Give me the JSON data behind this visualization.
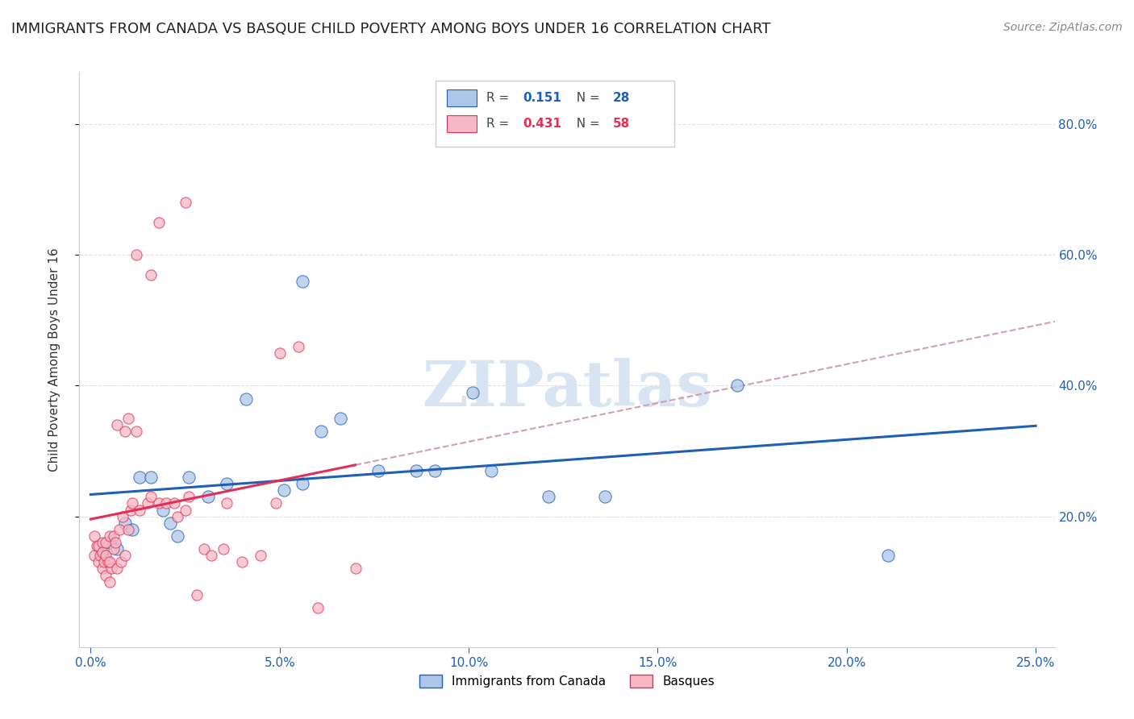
{
  "title": "IMMIGRANTS FROM CANADA VS BASQUE CHILD POVERTY AMONG BOYS UNDER 16 CORRELATION CHART",
  "source": "Source: ZipAtlas.com",
  "ylabel": "Child Poverty Among Boys Under 16",
  "x_tick_labels": [
    "0.0%",
    "5.0%",
    "10.0%",
    "15.0%",
    "20.0%",
    "25.0%"
  ],
  "x_tick_vals": [
    0.0,
    5.0,
    10.0,
    15.0,
    20.0,
    25.0
  ],
  "y_tick_labels_right": [
    "20.0%",
    "40.0%",
    "60.0%",
    "80.0%"
  ],
  "y_tick_vals": [
    20.0,
    40.0,
    60.0,
    80.0
  ],
  "xlim": [
    -0.3,
    25.5
  ],
  "ylim": [
    0.0,
    88.0
  ],
  "legend_blue_label": "Immigrants from Canada",
  "legend_pink_label": "Basques",
  "legend_blue_R_val": "0.151",
  "legend_blue_N_val": "28",
  "legend_pink_R_val": "0.431",
  "legend_pink_N_val": "58",
  "blue_color": "#aec6e8",
  "pink_color": "#f5b8c4",
  "blue_line_color": "#1f5fb5",
  "pink_line_color": "#e03055",
  "dashed_line_color": "#d0a0b0",
  "watermark": "ZIPatlas",
  "watermark_color": "#d8e4f2",
  "title_fontsize": 13,
  "source_fontsize": 10,
  "axis_label_fontsize": 11,
  "tick_fontsize": 11,
  "blue_scatter": [
    [
      0.3,
      14.0
    ],
    [
      0.5,
      16.0
    ],
    [
      0.7,
      15.0
    ],
    [
      0.9,
      19.0
    ],
    [
      1.1,
      18.0
    ],
    [
      1.3,
      26.0
    ],
    [
      1.6,
      26.0
    ],
    [
      1.9,
      21.0
    ],
    [
      2.1,
      19.0
    ],
    [
      2.3,
      17.0
    ],
    [
      2.6,
      26.0
    ],
    [
      3.1,
      23.0
    ],
    [
      3.6,
      25.0
    ],
    [
      4.1,
      38.0
    ],
    [
      5.1,
      24.0
    ],
    [
      5.6,
      25.0
    ],
    [
      6.1,
      33.0
    ],
    [
      6.6,
      35.0
    ],
    [
      7.6,
      27.0
    ],
    [
      8.6,
      27.0
    ],
    [
      9.1,
      27.0
    ],
    [
      10.1,
      39.0
    ],
    [
      10.6,
      27.0
    ],
    [
      12.1,
      23.0
    ],
    [
      13.6,
      23.0
    ],
    [
      17.1,
      40.0
    ],
    [
      21.1,
      14.0
    ],
    [
      5.6,
      56.0
    ]
  ],
  "pink_scatter": [
    [
      0.1,
      14.0
    ],
    [
      0.15,
      15.5
    ],
    [
      0.1,
      17.0
    ],
    [
      0.2,
      13.0
    ],
    [
      0.25,
      14.0
    ],
    [
      0.2,
      15.5
    ],
    [
      0.3,
      16.0
    ],
    [
      0.3,
      12.0
    ],
    [
      0.35,
      13.0
    ],
    [
      0.3,
      14.5
    ],
    [
      0.4,
      16.0
    ],
    [
      0.4,
      11.0
    ],
    [
      0.45,
      13.0
    ],
    [
      0.4,
      14.0
    ],
    [
      0.5,
      17.0
    ],
    [
      0.5,
      10.0
    ],
    [
      0.55,
      12.0
    ],
    [
      0.5,
      13.0
    ],
    [
      0.6,
      17.0
    ],
    [
      0.6,
      15.0
    ],
    [
      0.65,
      16.0
    ],
    [
      0.7,
      12.0
    ],
    [
      0.75,
      18.0
    ],
    [
      0.8,
      13.0
    ],
    [
      0.85,
      20.0
    ],
    [
      0.9,
      14.0
    ],
    [
      1.0,
      18.0
    ],
    [
      1.05,
      21.0
    ],
    [
      1.1,
      22.0
    ],
    [
      1.2,
      33.0
    ],
    [
      1.3,
      21.0
    ],
    [
      1.5,
      22.0
    ],
    [
      1.6,
      23.0
    ],
    [
      1.8,
      22.0
    ],
    [
      2.0,
      22.0
    ],
    [
      2.2,
      22.0
    ],
    [
      2.3,
      20.0
    ],
    [
      2.5,
      21.0
    ],
    [
      2.6,
      23.0
    ],
    [
      2.8,
      8.0
    ],
    [
      3.0,
      15.0
    ],
    [
      3.5,
      15.0
    ],
    [
      3.6,
      22.0
    ],
    [
      4.0,
      13.0
    ],
    [
      4.5,
      14.0
    ],
    [
      4.9,
      22.0
    ],
    [
      5.0,
      45.0
    ],
    [
      5.5,
      46.0
    ],
    [
      6.0,
      6.0
    ],
    [
      7.0,
      12.0
    ],
    [
      1.8,
      65.0
    ],
    [
      2.5,
      68.0
    ],
    [
      1.2,
      60.0
    ],
    [
      1.6,
      57.0
    ],
    [
      0.7,
      34.0
    ],
    [
      1.0,
      35.0
    ],
    [
      0.9,
      33.0
    ],
    [
      3.2,
      14.0
    ]
  ]
}
